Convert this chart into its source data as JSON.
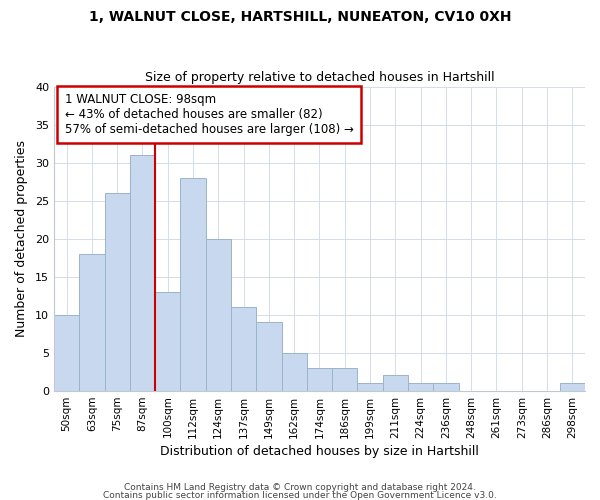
{
  "title1": "1, WALNUT CLOSE, HARTSHILL, NUNEATON, CV10 0XH",
  "title2": "Size of property relative to detached houses in Hartshill",
  "xlabel": "Distribution of detached houses by size in Hartshill",
  "ylabel": "Number of detached properties",
  "bar_labels": [
    "50sqm",
    "63sqm",
    "75sqm",
    "87sqm",
    "100sqm",
    "112sqm",
    "124sqm",
    "137sqm",
    "149sqm",
    "162sqm",
    "174sqm",
    "186sqm",
    "199sqm",
    "211sqm",
    "224sqm",
    "236sqm",
    "248sqm",
    "261sqm",
    "273sqm",
    "286sqm",
    "298sqm"
  ],
  "bar_values": [
    10,
    18,
    26,
    31,
    13,
    28,
    20,
    11,
    9,
    5,
    3,
    3,
    1,
    2,
    1,
    1,
    0,
    0,
    0,
    0,
    1
  ],
  "bar_color": "#c8d8ef",
  "bar_edge_color": "#9ab4cc",
  "vline_color": "#cc0000",
  "annotation_text": "1 WALNUT CLOSE: 98sqm\n← 43% of detached houses are smaller (82)\n57% of semi-detached houses are larger (108) →",
  "annotation_box_edge": "#cc0000",
  "ylim": [
    0,
    40
  ],
  "yticks": [
    0,
    5,
    10,
    15,
    20,
    25,
    30,
    35,
    40
  ],
  "footer1": "Contains HM Land Registry data © Crown copyright and database right 2024.",
  "footer2": "Contains public sector information licensed under the Open Government Licence v3.0.",
  "background_color": "#ffffff",
  "grid_color": "#d4dde6"
}
